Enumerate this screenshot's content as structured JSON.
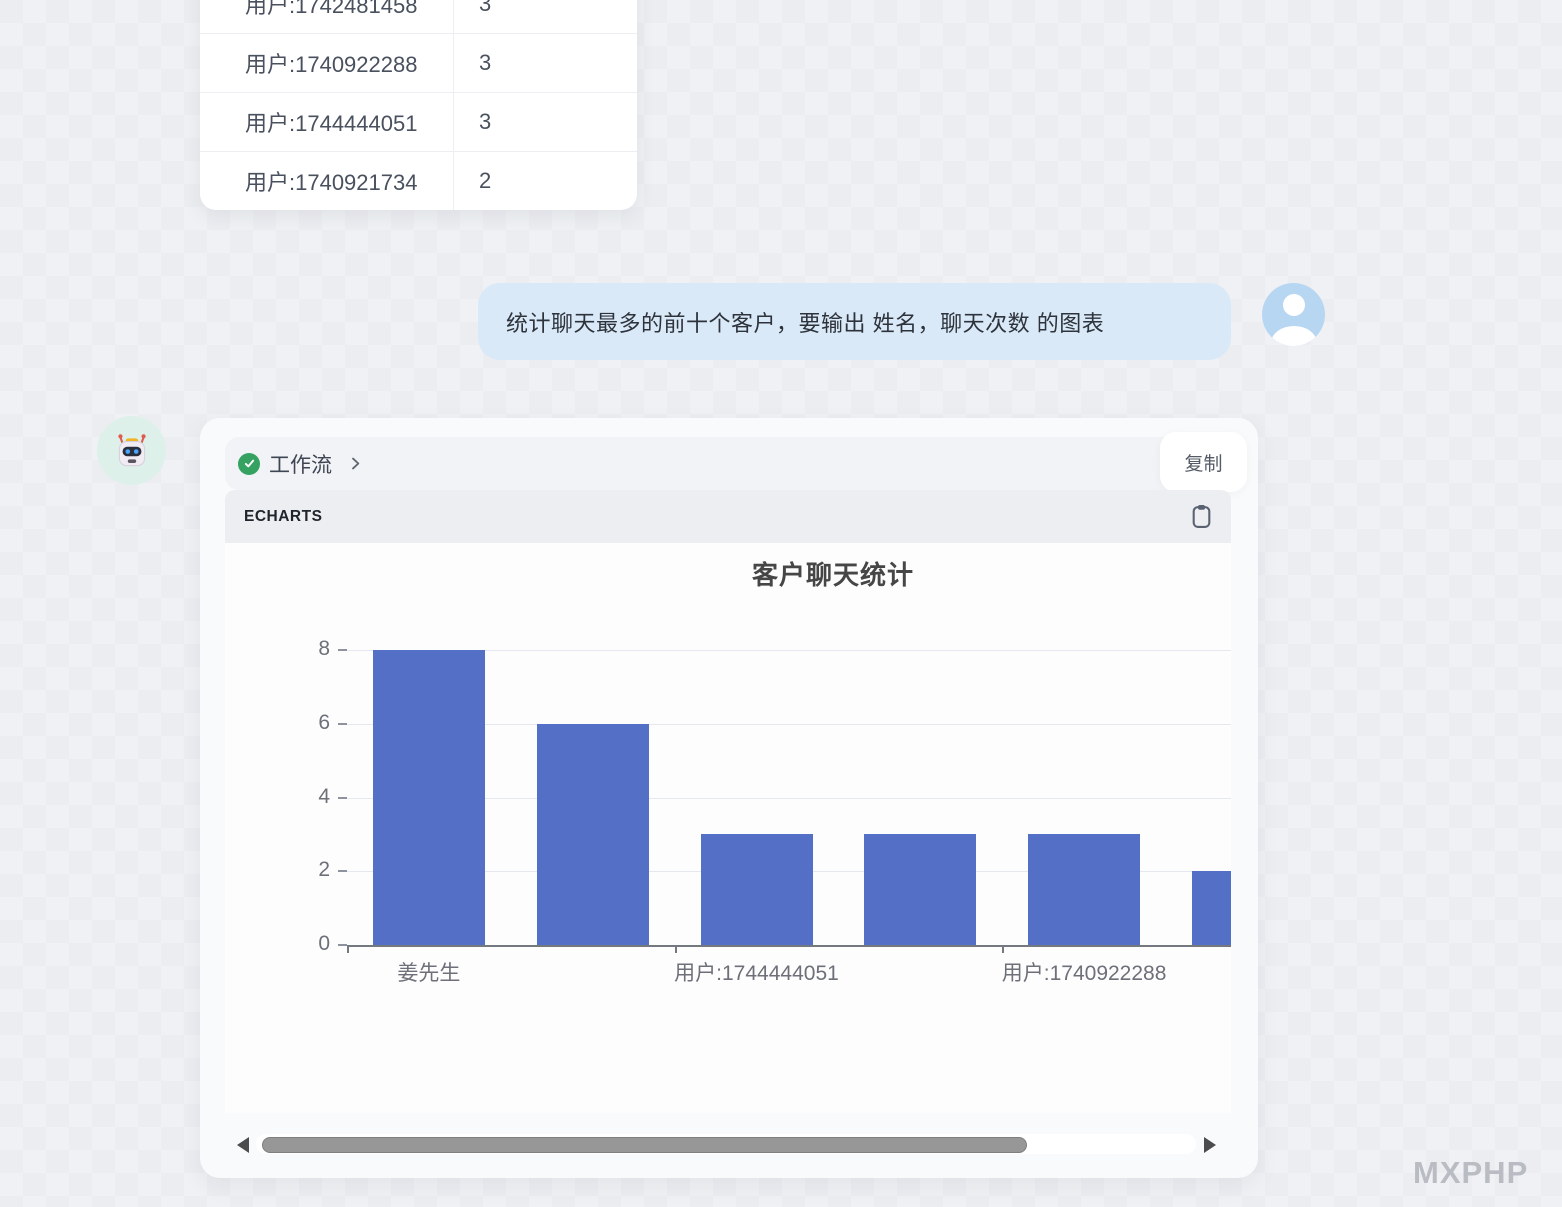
{
  "watermark": "MXPHP",
  "stats_table": {
    "rows": [
      {
        "name": "用户:1742481458",
        "count": "3"
      },
      {
        "name": "用户:1740922288",
        "count": "3"
      },
      {
        "name": "用户:1744444051",
        "count": "3"
      },
      {
        "name": "用户:1740921734",
        "count": "2"
      }
    ]
  },
  "user_message": {
    "text": "统计聊天最多的前十个客户，要输出 姓名，聊天次数 的图表"
  },
  "assistant": {
    "workflow_label": "工作流",
    "copy_label": "复制",
    "panel_title": "ECHARTS"
  },
  "chart_data": {
    "type": "bar",
    "title": "客户聊天统计",
    "categories": [
      "姜先生",
      "",
      "用户:1744444051",
      "",
      "用户:1740922288",
      ""
    ],
    "values": [
      8,
      6,
      3,
      3,
      3,
      2
    ],
    "y_ticks": [
      0,
      2,
      4,
      6,
      8
    ],
    "ylim": [
      0,
      8
    ],
    "xlabel": "",
    "ylabel": "",
    "grid": true,
    "legend_position": "none",
    "bar_color": "#5470c6"
  },
  "colors": {
    "bar": "#5470c6",
    "user_bubble": "#d9e9f8",
    "check_green": "#35a262",
    "gridline": "#e5e8ee",
    "axis": "#74787f",
    "axis_label": "#6E7079"
  }
}
